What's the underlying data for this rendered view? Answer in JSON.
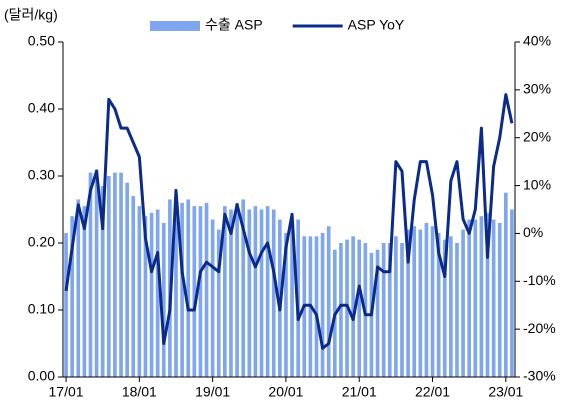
{
  "chart_data": {
    "type": "bar+line",
    "y_label": "(달러/kg)",
    "categories": [
      "17/01",
      null,
      null,
      null,
      null,
      null,
      null,
      null,
      null,
      null,
      null,
      null,
      "18/01",
      null,
      null,
      null,
      null,
      null,
      null,
      null,
      null,
      null,
      null,
      null,
      "19/01",
      null,
      null,
      null,
      null,
      null,
      null,
      null,
      null,
      null,
      null,
      null,
      "20/01",
      null,
      null,
      null,
      null,
      null,
      null,
      null,
      null,
      null,
      null,
      null,
      "21/01",
      null,
      null,
      null,
      null,
      null,
      null,
      null,
      null,
      null,
      null,
      null,
      "22/01",
      null,
      null,
      null,
      null,
      null,
      null,
      null,
      null,
      null,
      null,
      null,
      "23/01",
      null
    ],
    "series": [
      {
        "name": "수출 ASP",
        "type": "bar",
        "color": "#7fa6ee",
        "values": [
          0.215,
          0.24,
          0.265,
          0.255,
          0.305,
          0.31,
          0.285,
          0.3,
          0.305,
          0.305,
          0.29,
          0.27,
          0.255,
          0.24,
          0.245,
          0.25,
          0.23,
          0.265,
          0.27,
          0.26,
          0.265,
          0.255,
          0.255,
          0.26,
          0.235,
          0.22,
          0.255,
          0.25,
          0.26,
          0.265,
          0.25,
          0.255,
          0.25,
          0.255,
          0.25,
          0.235,
          0.215,
          0.225,
          0.235,
          0.21,
          0.21,
          0.21,
          0.215,
          0.225,
          0.19,
          0.2,
          0.205,
          0.21,
          0.205,
          0.2,
          0.185,
          0.19,
          0.2,
          0.2,
          0.21,
          0.2,
          0.22,
          0.225,
          0.22,
          0.23,
          0.225,
          0.215,
          0.205,
          0.21,
          0.2,
          0.22,
          0.235,
          0.235,
          0.24,
          0.245,
          0.235,
          0.23,
          0.275,
          0.25
        ]
      },
      {
        "name": "ASP YoY",
        "type": "line",
        "axis": "y2",
        "color": "#0a2a8c",
        "values": [
          -12,
          -3,
          6,
          1,
          9,
          13,
          1,
          28,
          26,
          22,
          22,
          19,
          16,
          -1,
          -8,
          -4,
          -23,
          -16,
          9,
          -8,
          -16,
          -16,
          -8,
          -6,
          -7,
          -8,
          4,
          0,
          6,
          1,
          -4,
          -7,
          -4,
          -2,
          -8,
          -16,
          -3,
          4,
          -18,
          -15,
          -15,
          -17,
          -24,
          -23,
          -17,
          -15,
          -15,
          -18,
          -11,
          -17,
          -17,
          -7,
          -8,
          -8,
          15,
          13,
          -6,
          7,
          15,
          15,
          8,
          -4,
          -9,
          11,
          15,
          3,
          0,
          5,
          22,
          -5,
          14,
          20,
          29,
          23
        ]
      }
    ],
    "ylim": [
      0,
      0.5
    ],
    "yticks": [
      {
        "value": 0,
        "label": "0.00"
      },
      {
        "value": 0.1,
        "label": "0.10"
      },
      {
        "value": 0.2,
        "label": "0.20"
      },
      {
        "value": 0.3,
        "label": "0.30"
      },
      {
        "value": 0.4,
        "label": "0.40"
      },
      {
        "value": 0.5,
        "label": "0.50"
      }
    ],
    "y2lim": [
      -30,
      40
    ],
    "y2ticks": [
      {
        "value": -30,
        "label": "-30%"
      },
      {
        "value": -20,
        "label": "-20%"
      },
      {
        "value": -10,
        "label": "-10%"
      },
      {
        "value": 0,
        "label": "0%"
      },
      {
        "value": 10,
        "label": "10%"
      },
      {
        "value": 20,
        "label": "20%"
      },
      {
        "value": 30,
        "label": "30%"
      },
      {
        "value": 40,
        "label": "40%"
      }
    ]
  }
}
